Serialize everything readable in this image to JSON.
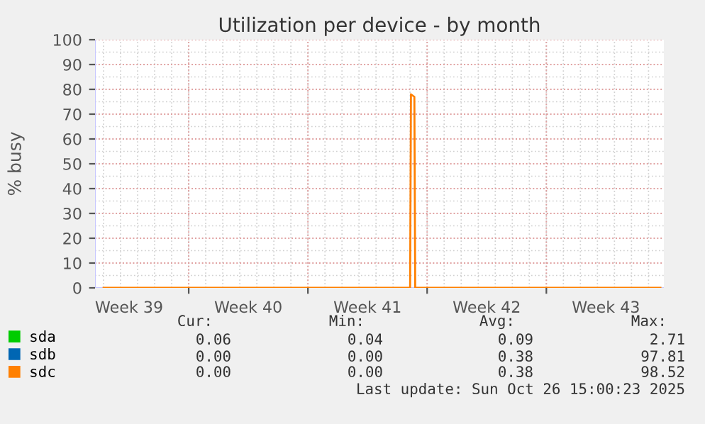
{
  "chart_data": {
    "type": "line",
    "title": "Utilization per device - by month",
    "ylabel": "% busy",
    "x": [
      "2025-09-24T00:00",
      "2025-10-12T00:00",
      "2025-10-12T01:12",
      "2025-10-12T06:00",
      "2025-10-12T07:12",
      "2025-10-26T16:48"
    ],
    "series": [
      {
        "name": "sda",
        "color": "#00cc00",
        "values": [
          null,
          null,
          null,
          null,
          null,
          null
        ]
      },
      {
        "name": "sdb",
        "color": "#0066b3",
        "values": [
          null,
          null,
          null,
          null,
          null,
          null
        ]
      },
      {
        "name": "sdc",
        "color": "#ff8000",
        "values": [
          0,
          0,
          78,
          77,
          0,
          0
        ]
      }
    ],
    "xlim": [
      "2025-09-23T12:00",
      "2025-10-26T21:36"
    ],
    "xticks": [
      {
        "value": "2025-09-25T12:00",
        "label": "Week 39"
      },
      {
        "value": "2025-09-29T00:00",
        "label": null
      },
      {
        "value": "2025-10-02T12:00",
        "label": "Week 40"
      },
      {
        "value": "2025-10-06T00:00",
        "label": null
      },
      {
        "value": "2025-10-09T12:00",
        "label": "Week 41"
      },
      {
        "value": "2025-10-13T00:00",
        "label": null
      },
      {
        "value": "2025-10-16T12:00",
        "label": "Week 42"
      },
      {
        "value": "2025-10-20T00:00",
        "label": null
      },
      {
        "value": "2025-10-23T12:00",
        "label": "Week 43"
      }
    ],
    "ylim": [
      0,
      100
    ],
    "yticks": [
      0,
      10,
      20,
      30,
      40,
      50,
      60,
      70,
      80,
      90,
      100
    ],
    "grid": true,
    "legend": "bottom",
    "marker": "none",
    "line_style": "solid",
    "annotations": [
      "Cur:",
      "Min:",
      "Avg:",
      "Max:",
      "0.06",
      "0.04",
      "0.09",
      "2.71",
      "0.00",
      "0.00",
      "0.38",
      "97.81",
      "0.00",
      "0.00",
      "0.38",
      "98.52",
      "Last update: Sun Oct 26 15:00:23 2025"
    ]
  }
}
